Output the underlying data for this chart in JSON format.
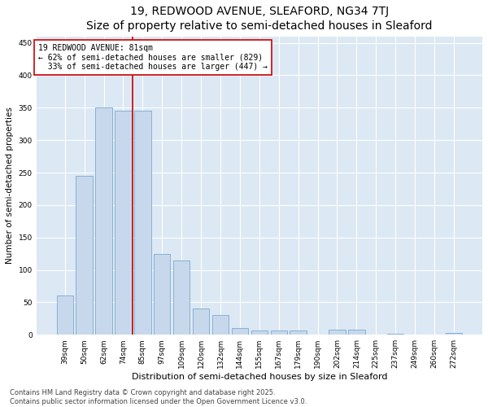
{
  "title": "19, REDWOOD AVENUE, SLEAFORD, NG34 7TJ",
  "subtitle": "Size of property relative to semi-detached houses in Sleaford",
  "xlabel": "Distribution of semi-detached houses by size in Sleaford",
  "ylabel": "Number of semi-detached properties",
  "bar_color": "#c8d8ec",
  "bar_edge_color": "#7aaace",
  "background_color": "#dce8f4",
  "fig_background_color": "#ffffff",
  "categories": [
    "39sqm",
    "50sqm",
    "62sqm",
    "74sqm",
    "85sqm",
    "97sqm",
    "109sqm",
    "120sqm",
    "132sqm",
    "144sqm",
    "155sqm",
    "167sqm",
    "179sqm",
    "190sqm",
    "202sqm",
    "214sqm",
    "225sqm",
    "237sqm",
    "249sqm",
    "260sqm",
    "272sqm"
  ],
  "values": [
    60,
    245,
    350,
    345,
    345,
    125,
    115,
    40,
    30,
    10,
    7,
    7,
    7,
    0,
    8,
    8,
    0,
    2,
    0,
    0,
    3
  ],
  "property_sqm": 81,
  "property_bin_index": 4,
  "pct_smaller": 62,
  "count_smaller": 829,
  "pct_larger": 33,
  "count_larger": 447,
  "annotation_box_facecolor": "#ffffff",
  "annotation_box_edgecolor": "#cc0000",
  "line_color": "#cc0000",
  "ylim": [
    0,
    460
  ],
  "yticks": [
    0,
    50,
    100,
    150,
    200,
    250,
    300,
    350,
    400,
    450
  ],
  "footnote": "Contains HM Land Registry data © Crown copyright and database right 2025.\nContains public sector information licensed under the Open Government Licence v3.0.",
  "title_fontsize": 10,
  "xlabel_fontsize": 8,
  "ylabel_fontsize": 7.5,
  "tick_fontsize": 6.5,
  "annotation_fontsize": 7,
  "footnote_fontsize": 6
}
